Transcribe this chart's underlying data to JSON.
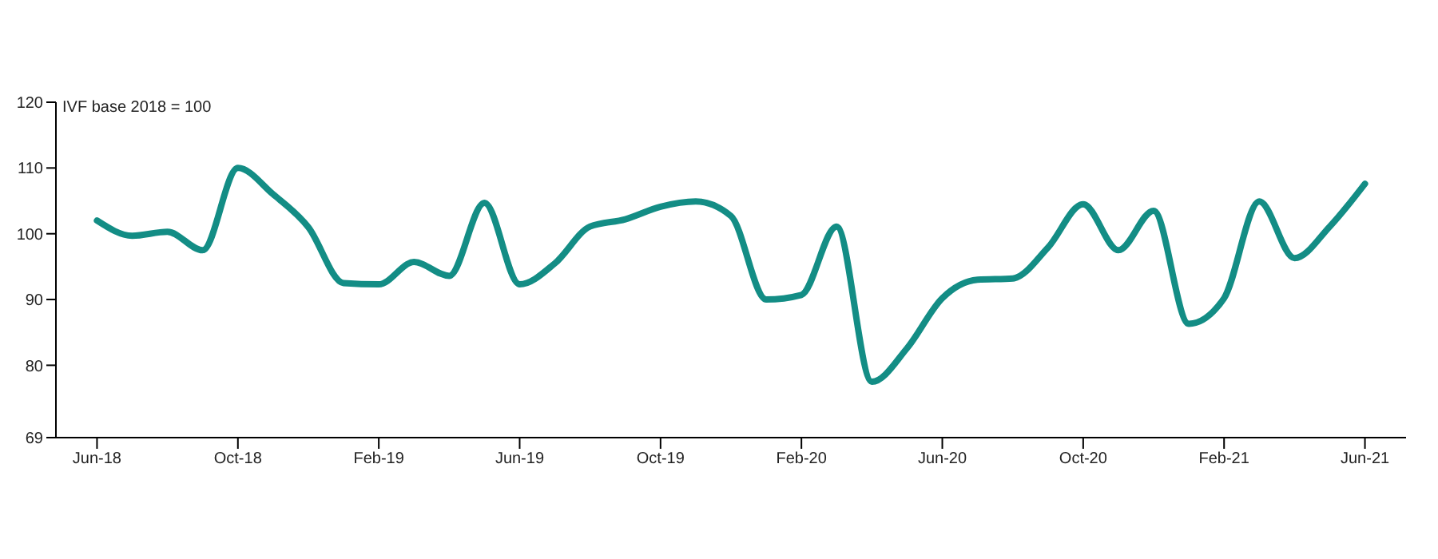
{
  "chart_data": {
    "type": "line",
    "ylabel": "IVF base 2018 = 100",
    "x": [
      "2018-06",
      "2018-07",
      "2018-08",
      "2018-09",
      "2018-10",
      "2018-11",
      "2018-12",
      "2019-01",
      "2019-02",
      "2019-03",
      "2019-04",
      "2019-05",
      "2019-06",
      "2019-07",
      "2019-08",
      "2019-09",
      "2019-10",
      "2019-11",
      "2019-12",
      "2020-01",
      "2020-02",
      "2020-03",
      "2020-04",
      "2020-05",
      "2020-06",
      "2020-07",
      "2020-08",
      "2020-09",
      "2020-10",
      "2020-11",
      "2020-12",
      "2021-01",
      "2021-02",
      "2021-03",
      "2021-04",
      "2021-05",
      "2021-06"
    ],
    "series": [
      {
        "color": "#138d85",
        "values": [
          102,
          99.7,
          100.3,
          97.5,
          110,
          106,
          101,
          92.5,
          92.3,
          95.7,
          93.6,
          104.7,
          92.3,
          95.5,
          101.1,
          102.2,
          104.1,
          104.9,
          102.7,
          90,
          90.7,
          101.1,
          77.5,
          82.6,
          90.2,
          93,
          93.2,
          97.9,
          104.5,
          97.5,
          103.5,
          86.3,
          90.2,
          104.9,
          96.3,
          101.1,
          107.6
        ]
      }
    ],
    "xlim": [
      "2018-04-26",
      "2021-07-06"
    ],
    "xticks": [
      {
        "value": "2018-06",
        "label": "Jun-18"
      },
      {
        "value": "2018-10",
        "label": "Oct-18"
      },
      {
        "value": "2019-02",
        "label": "Feb-19"
      },
      {
        "value": "2019-06",
        "label": "Jun-19"
      },
      {
        "value": "2019-10",
        "label": "Oct-19"
      },
      {
        "value": "2020-02",
        "label": "Feb-20"
      },
      {
        "value": "2020-06",
        "label": "Jun-20"
      },
      {
        "value": "2020-10",
        "label": "Oct-20"
      },
      {
        "value": "2021-02",
        "label": "Feb-21"
      },
      {
        "value": "2021-06",
        "label": "Jun-21"
      }
    ],
    "ylim": [
      69,
      120
    ],
    "yticks": [
      69,
      80,
      90,
      100,
      110,
      120
    ],
    "grid": false,
    "legend": false,
    "marker": "none",
    "line_style": "solid"
  }
}
